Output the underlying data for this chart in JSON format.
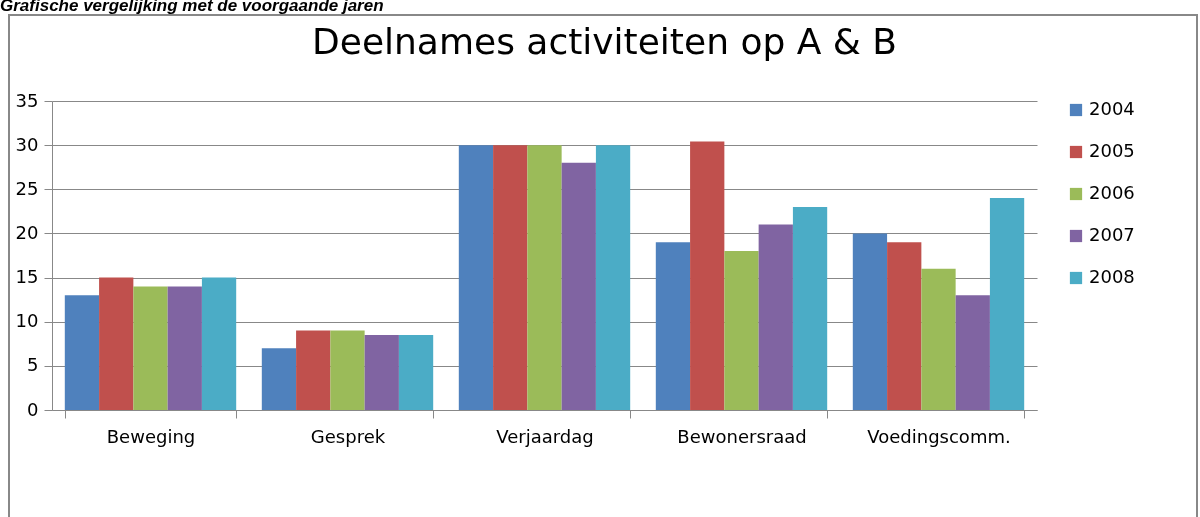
{
  "chart_data": {
    "type": "bar",
    "title": "Deelnames activiteiten op A & B",
    "annotations": [
      "Grafische vergelijking met de voorgaande jaren"
    ],
    "categories": [
      "Beweging",
      "Gesprek",
      "Verjaardag",
      "Bewonersraad",
      "Voedingscomm."
    ],
    "series": [
      {
        "name": "2004",
        "color": "#4f81bd",
        "values": [
          13,
          7,
          30,
          19,
          20
        ]
      },
      {
        "name": "2005",
        "color": "#c0504d",
        "values": [
          15,
          9,
          30,
          30.4,
          19
        ]
      },
      {
        "name": "2006",
        "color": "#9bbb59",
        "values": [
          14,
          9,
          30,
          18,
          16
        ]
      },
      {
        "name": "2007",
        "color": "#8064a2",
        "values": [
          14,
          8.5,
          28,
          21,
          13
        ]
      },
      {
        "name": "2008",
        "color": "#4bacc6",
        "values": [
          15,
          8.5,
          30,
          23,
          24
        ]
      }
    ],
    "ylim": [
      0,
      35
    ],
    "yticks": [
      0,
      5,
      10,
      15,
      20,
      25,
      30,
      35
    ],
    "grid": "y",
    "legend": "right"
  }
}
